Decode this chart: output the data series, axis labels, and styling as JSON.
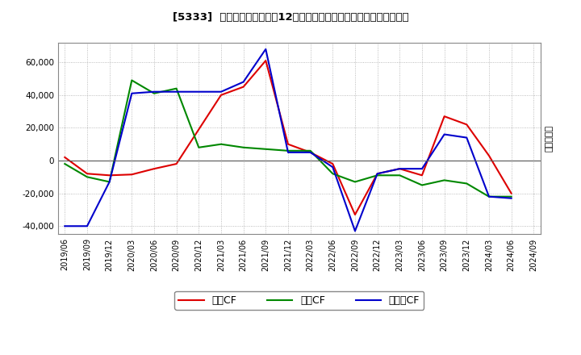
{
  "title": "[5333]  キャッシュフローの12か月移動合計の対前年同期増減額の推移",
  "ylabel": "（百万円）",
  "background_color": "#ffffff",
  "plot_bg_color": "#ffffff",
  "grid_color": "#aaaaaa",
  "x_labels": [
    "2019/06",
    "2019/09",
    "2019/12",
    "2020/03",
    "2020/06",
    "2020/09",
    "2020/12",
    "2021/03",
    "2021/06",
    "2021/09",
    "2021/12",
    "2022/03",
    "2022/06",
    "2022/09",
    "2022/12",
    "2023/03",
    "2023/06",
    "2023/09",
    "2023/12",
    "2024/03",
    "2024/06",
    "2024/09"
  ],
  "operating_cf": [
    2000,
    -8000,
    -9000,
    -8500,
    -5000,
    -2000,
    19000,
    40000,
    45000,
    61000,
    10000,
    5000,
    -2000,
    -33000,
    -8000,
    -5000,
    -9000,
    27000,
    22000,
    3000,
    -20000,
    null
  ],
  "investing_cf": [
    -2000,
    -10000,
    -13000,
    49000,
    41000,
    44000,
    8000,
    10000,
    8000,
    7000,
    6000,
    6000,
    -8000,
    -13000,
    -9000,
    -9000,
    -15000,
    -12000,
    -14000,
    -22000,
    -22000,
    null
  ],
  "free_cf": [
    -40000,
    -40000,
    -13000,
    41000,
    42000,
    42000,
    42000,
    42000,
    48000,
    68000,
    5000,
    5000,
    -4000,
    -43000,
    -8000,
    -5000,
    -5000,
    16000,
    14000,
    -22000,
    -23000,
    null
  ],
  "operating_color": "#dd0000",
  "investing_color": "#008800",
  "free_color": "#0000cc",
  "ylim": [
    -45000,
    72000
  ],
  "yticks": [
    -40000,
    -20000,
    0,
    20000,
    40000,
    60000
  ],
  "legend_labels": [
    "営業CF",
    "投資CF",
    "フリーCF"
  ]
}
